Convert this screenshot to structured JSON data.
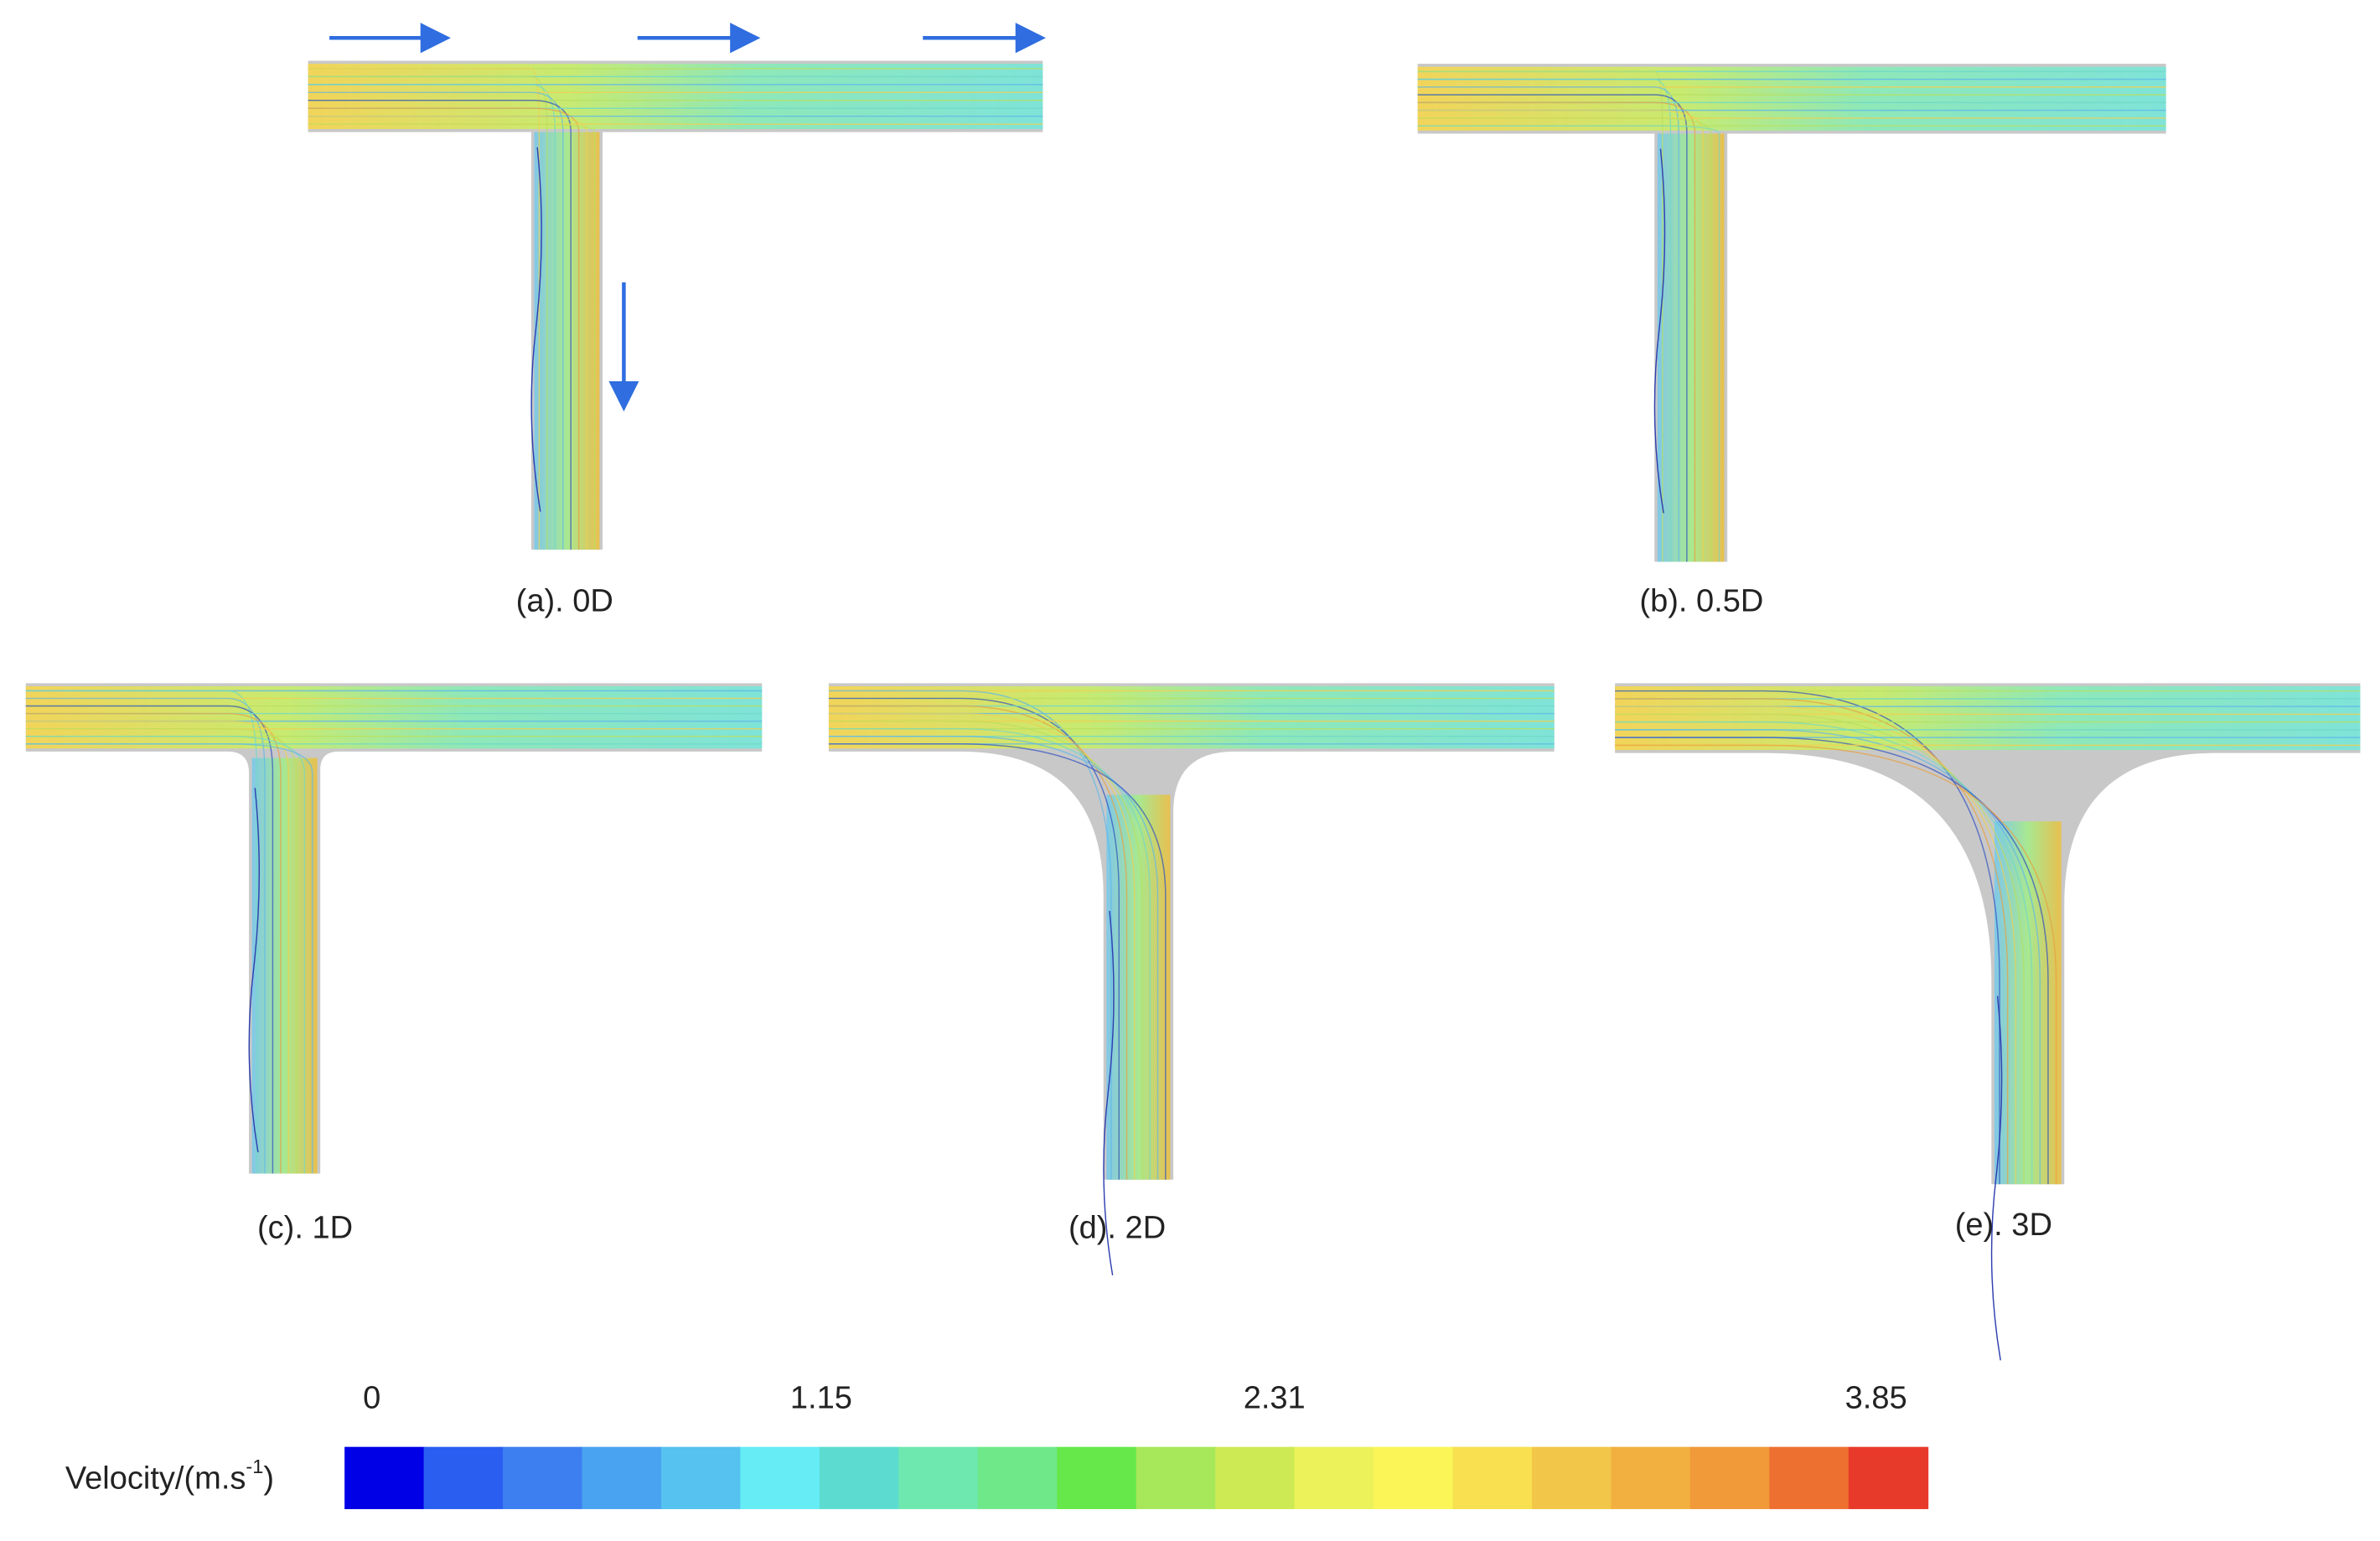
{
  "panels": [
    {
      "caption": "(a). 0D"
    },
    {
      "caption": "(b). 0.5D"
    },
    {
      "caption": "(c). 1D"
    },
    {
      "caption": "(d). 2D"
    },
    {
      "caption": "(e). 3D"
    }
  ],
  "colorbar": {
    "label": "Velocity/(m.s",
    "label_superscript": "-1",
    "label_suffix": ")",
    "ticks": [
      0,
      1.15,
      2.31,
      3.85
    ],
    "colors": [
      "#0000e6",
      "#2a5ef0",
      "#3d7ff0",
      "#4aa3f0",
      "#55c2f0",
      "#66ecf5",
      "#5cdcd0",
      "#6fe8b0",
      "#6fe88a",
      "#66e84a",
      "#a6e85a",
      "#cdea55",
      "#ecf25a",
      "#fbf558",
      "#f8e050",
      "#f2c648",
      "#f2b040",
      "#f09a3a",
      "#ee7030",
      "#e83a2a"
    ]
  }
}
